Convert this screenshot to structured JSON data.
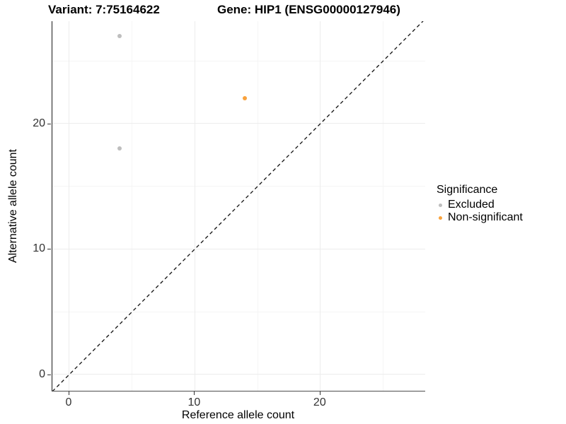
{
  "titles": {
    "variant": "Variant: 7:75164622",
    "gene": "Gene: HIP1 (ENSG00000127946)"
  },
  "axes": {
    "x_label": "Reference allele count",
    "y_label": "Alternative allele count"
  },
  "legend": {
    "title": "Significance",
    "items": [
      {
        "label": "Excluded",
        "color": "#bebebe"
      },
      {
        "label": "Non-significant",
        "color": "#f9a23c"
      }
    ]
  },
  "chart_data": {
    "type": "scatter",
    "title": "Variant: 7:75164622 / Gene: HIP1 (ENSG00000127946)",
    "xlabel": "Reference allele count",
    "ylabel": "Alternative allele count",
    "series": [
      {
        "name": "Excluded",
        "color": "#bebebe",
        "points": [
          {
            "x": 4,
            "y": 27
          },
          {
            "x": 4,
            "y": 18
          }
        ]
      },
      {
        "name": "Non-significant",
        "color": "#f9a23c",
        "points": [
          {
            "x": 14,
            "y": 22
          }
        ]
      }
    ],
    "x_ticks": [
      0,
      10,
      20
    ],
    "y_ticks": [
      0,
      10,
      20
    ],
    "x_minor_ticks": [
      5,
      15,
      25
    ],
    "y_minor_ticks": [
      5,
      15,
      25
    ],
    "xlim": [
      -1.35,
      28.35
    ],
    "ylim": [
      -1.3,
      28.17
    ],
    "diagonal_line": {
      "equation": "y = x",
      "style": "dashed",
      "color": "#111111"
    },
    "grid": true,
    "legend_position": "right",
    "legend_title": "Significance"
  }
}
